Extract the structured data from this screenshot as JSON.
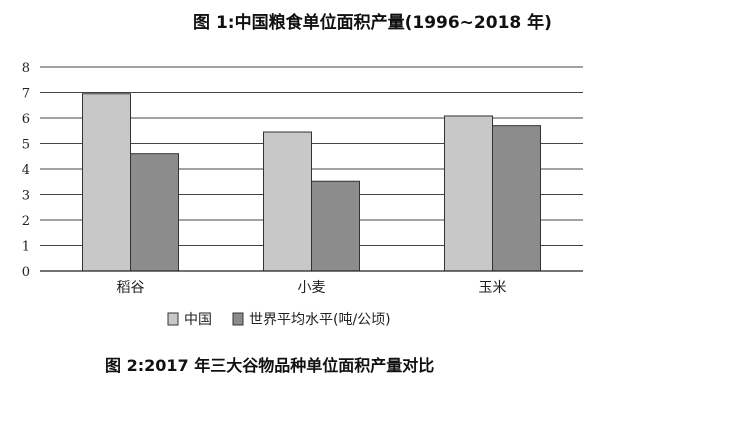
{
  "figure1_title": "图 1:中国粮食单位面积产量(1996~2018 年)",
  "figure2_caption": "图 2:2017 年三大谷物品种单位面积产量对比",
  "chart_data": {
    "type": "bar",
    "categories": [
      "稻谷",
      "小麦",
      "玉米"
    ],
    "series": [
      {
        "name": "中国",
        "values": [
          6.95,
          5.45,
          6.08
        ],
        "color": "#c8c8c8"
      },
      {
        "name": "世界平均水平(吨/公顷)",
        "values": [
          4.6,
          3.52,
          5.7
        ],
        "color": "#8c8c8c"
      }
    ],
    "yticks": [
      0,
      1,
      2,
      3,
      4,
      5,
      6,
      7,
      8
    ],
    "ylim": [
      0,
      8
    ],
    "grid": true,
    "legend_position": "bottom"
  }
}
